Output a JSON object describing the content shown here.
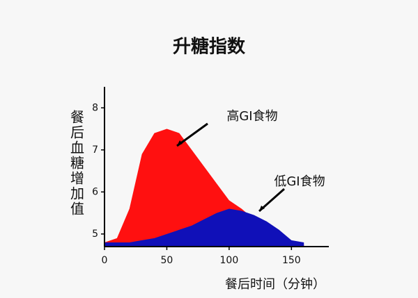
{
  "chart_data": {
    "type": "area",
    "title": "升糖指数",
    "x_label": "餐后时间（分钟）",
    "y_label": "餐后血糖增加值",
    "x": [
      0,
      10,
      20,
      30,
      40,
      50,
      60,
      70,
      80,
      90,
      100,
      110,
      120,
      130,
      140,
      150,
      160
    ],
    "series": [
      {
        "name": "高GI食物",
        "color": "#ff1010",
        "values": [
          4.8,
          4.9,
          5.6,
          6.9,
          7.4,
          7.5,
          7.4,
          7.0,
          6.6,
          6.2,
          5.8,
          5.6,
          5.35,
          5.05,
          4.85,
          4.8,
          4.75
        ]
      },
      {
        "name": "低GI食物",
        "color": "#1010b8",
        "values": [
          4.8,
          4.8,
          4.8,
          4.85,
          4.9,
          5.0,
          5.1,
          5.2,
          5.35,
          5.5,
          5.6,
          5.55,
          5.45,
          5.3,
          5.1,
          4.85,
          4.8
        ]
      }
    ],
    "xlim": [
      0,
      180
    ],
    "xticks": [
      0,
      50,
      100,
      150
    ],
    "ylim": [
      4.7,
      8.5
    ],
    "yticks": [
      5,
      6,
      7,
      8
    ],
    "grid": false
  }
}
